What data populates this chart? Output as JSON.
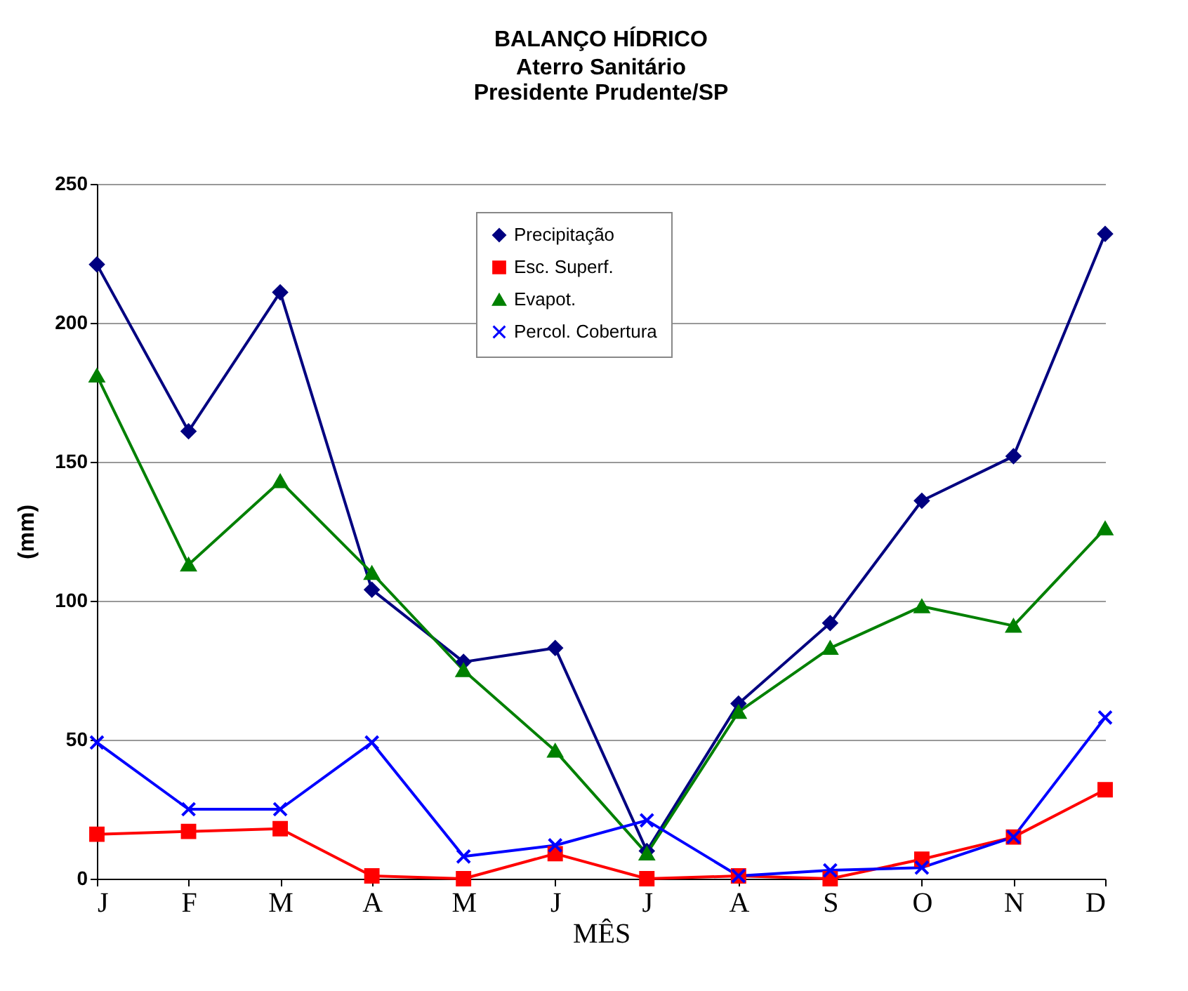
{
  "chart_data": {
    "type": "line",
    "title": "BALANÇO HÍDRICO",
    "subtitle": "Aterro Sanitário\nPresidente Prudente/SP",
    "xlabel": "MÊS",
    "ylabel": "(mm)",
    "categories": [
      "J",
      "F",
      "M",
      "A",
      "M",
      "J",
      "J",
      "A",
      "S",
      "O",
      "N",
      "D"
    ],
    "series": [
      {
        "name": "Precipitação",
        "color": "#000080",
        "marker": "diamond",
        "values": [
          221,
          161,
          211,
          104,
          78,
          83,
          10,
          63,
          92,
          136,
          152,
          232
        ]
      },
      {
        "name": "Esc. Superf.",
        "color": "#ff0000",
        "marker": "square",
        "values": [
          16,
          17,
          18,
          1,
          0,
          9,
          0,
          1,
          0,
          7,
          15,
          32
        ]
      },
      {
        "name": "Evapot.",
        "color": "#008000",
        "marker": "triangle",
        "values": [
          181,
          113,
          143,
          110,
          75,
          46,
          9,
          60,
          83,
          98,
          91,
          126
        ]
      },
      {
        "name": "Percol. Cobertura",
        "color": "#0000ff",
        "marker": "cross",
        "values": [
          49,
          25,
          25,
          49,
          8,
          12,
          21,
          1,
          3,
          4,
          15,
          58
        ]
      }
    ],
    "ylim": [
      0,
      250
    ],
    "yticks": [
      0,
      50,
      100,
      150,
      200,
      250
    ],
    "grid": "y",
    "legend": "top"
  }
}
